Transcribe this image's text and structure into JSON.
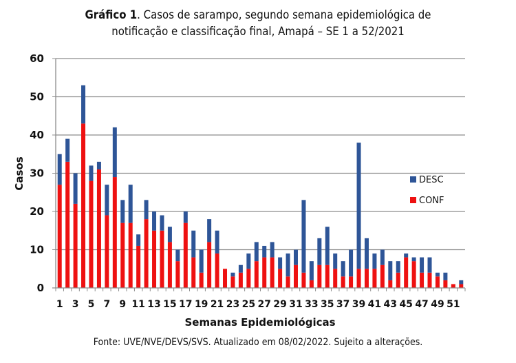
{
  "title": {
    "bold": "Gráfico 1",
    "line1": ". Casos de sarampo, segundo semana epidemiológica de",
    "line2": "notificação e classificação final, Amapá – SE 1 a 52/2021"
  },
  "source": "Fonte: UVE/NVE/DEVS/SVS. Atualizado em 08/02/2022. Sujeito a alterações.",
  "chart_data": {
    "type": "bar",
    "stacked": true,
    "title": "Gráfico 1. Casos de sarampo, segundo semana epidemiológica de notificação e classificação final, Amapá – SE 1 a 52/2021",
    "xlabel": "Semanas Epidemiológicas",
    "ylabel": "Casos",
    "ylim": [
      0,
      60
    ],
    "yticks": [
      0,
      10,
      20,
      30,
      40,
      50,
      60
    ],
    "grid": true,
    "legend_position": "right",
    "categories": [
      1,
      2,
      3,
      4,
      5,
      6,
      7,
      8,
      9,
      10,
      11,
      12,
      13,
      14,
      15,
      16,
      17,
      18,
      19,
      20,
      21,
      22,
      23,
      24,
      25,
      26,
      27,
      28,
      29,
      30,
      31,
      32,
      33,
      34,
      35,
      36,
      37,
      38,
      39,
      40,
      41,
      42,
      43,
      44,
      45,
      46,
      47,
      48,
      49,
      50,
      51,
      52
    ],
    "xtick_labels": [
      "1",
      "3",
      "5",
      "7",
      "9",
      "11",
      "13",
      "15",
      "17",
      "19",
      "21",
      "23",
      "25",
      "27",
      "29",
      "31",
      "33",
      "35",
      "37",
      "39",
      "41",
      "43",
      "45",
      "47",
      "49",
      "51"
    ],
    "series": [
      {
        "name": "CONF",
        "color": "#ee1111",
        "values": [
          27,
          33,
          22,
          43,
          28,
          31,
          19,
          29,
          17,
          17,
          11,
          18,
          15,
          15,
          12,
          7,
          17,
          8,
          4,
          12,
          9,
          5,
          3,
          4,
          5,
          7,
          8,
          8,
          5,
          3,
          6,
          4,
          2,
          6,
          6,
          5,
          3,
          3,
          5,
          5,
          5,
          6,
          2,
          4,
          8,
          7,
          4,
          4,
          3,
          2,
          1,
          1
        ]
      },
      {
        "name": "DESC",
        "color": "#2e5597",
        "values": [
          8,
          6,
          8,
          10,
          4,
          2,
          8,
          13,
          6,
          10,
          3,
          5,
          5,
          4,
          4,
          3,
          3,
          7,
          6,
          6,
          6,
          0,
          1,
          2,
          4,
          5,
          3,
          4,
          3,
          6,
          4,
          19,
          5,
          7,
          10,
          4,
          4,
          7,
          33,
          8,
          4,
          4,
          5,
          3,
          1,
          1,
          4,
          4,
          1,
          2,
          0,
          1
        ]
      }
    ],
    "totals": [
      35,
      39,
      30,
      53,
      32,
      33,
      27,
      42,
      23,
      27,
      14,
      23,
      20,
      19,
      16,
      10,
      20,
      15,
      10,
      18,
      15,
      5,
      4,
      6,
      9,
      12,
      11,
      12,
      8,
      9,
      10,
      23,
      7,
      13,
      16,
      9,
      7,
      10,
      38,
      13,
      9,
      10,
      7,
      7,
      9,
      8,
      8,
      8,
      4,
      4,
      1,
      2
    ]
  }
}
